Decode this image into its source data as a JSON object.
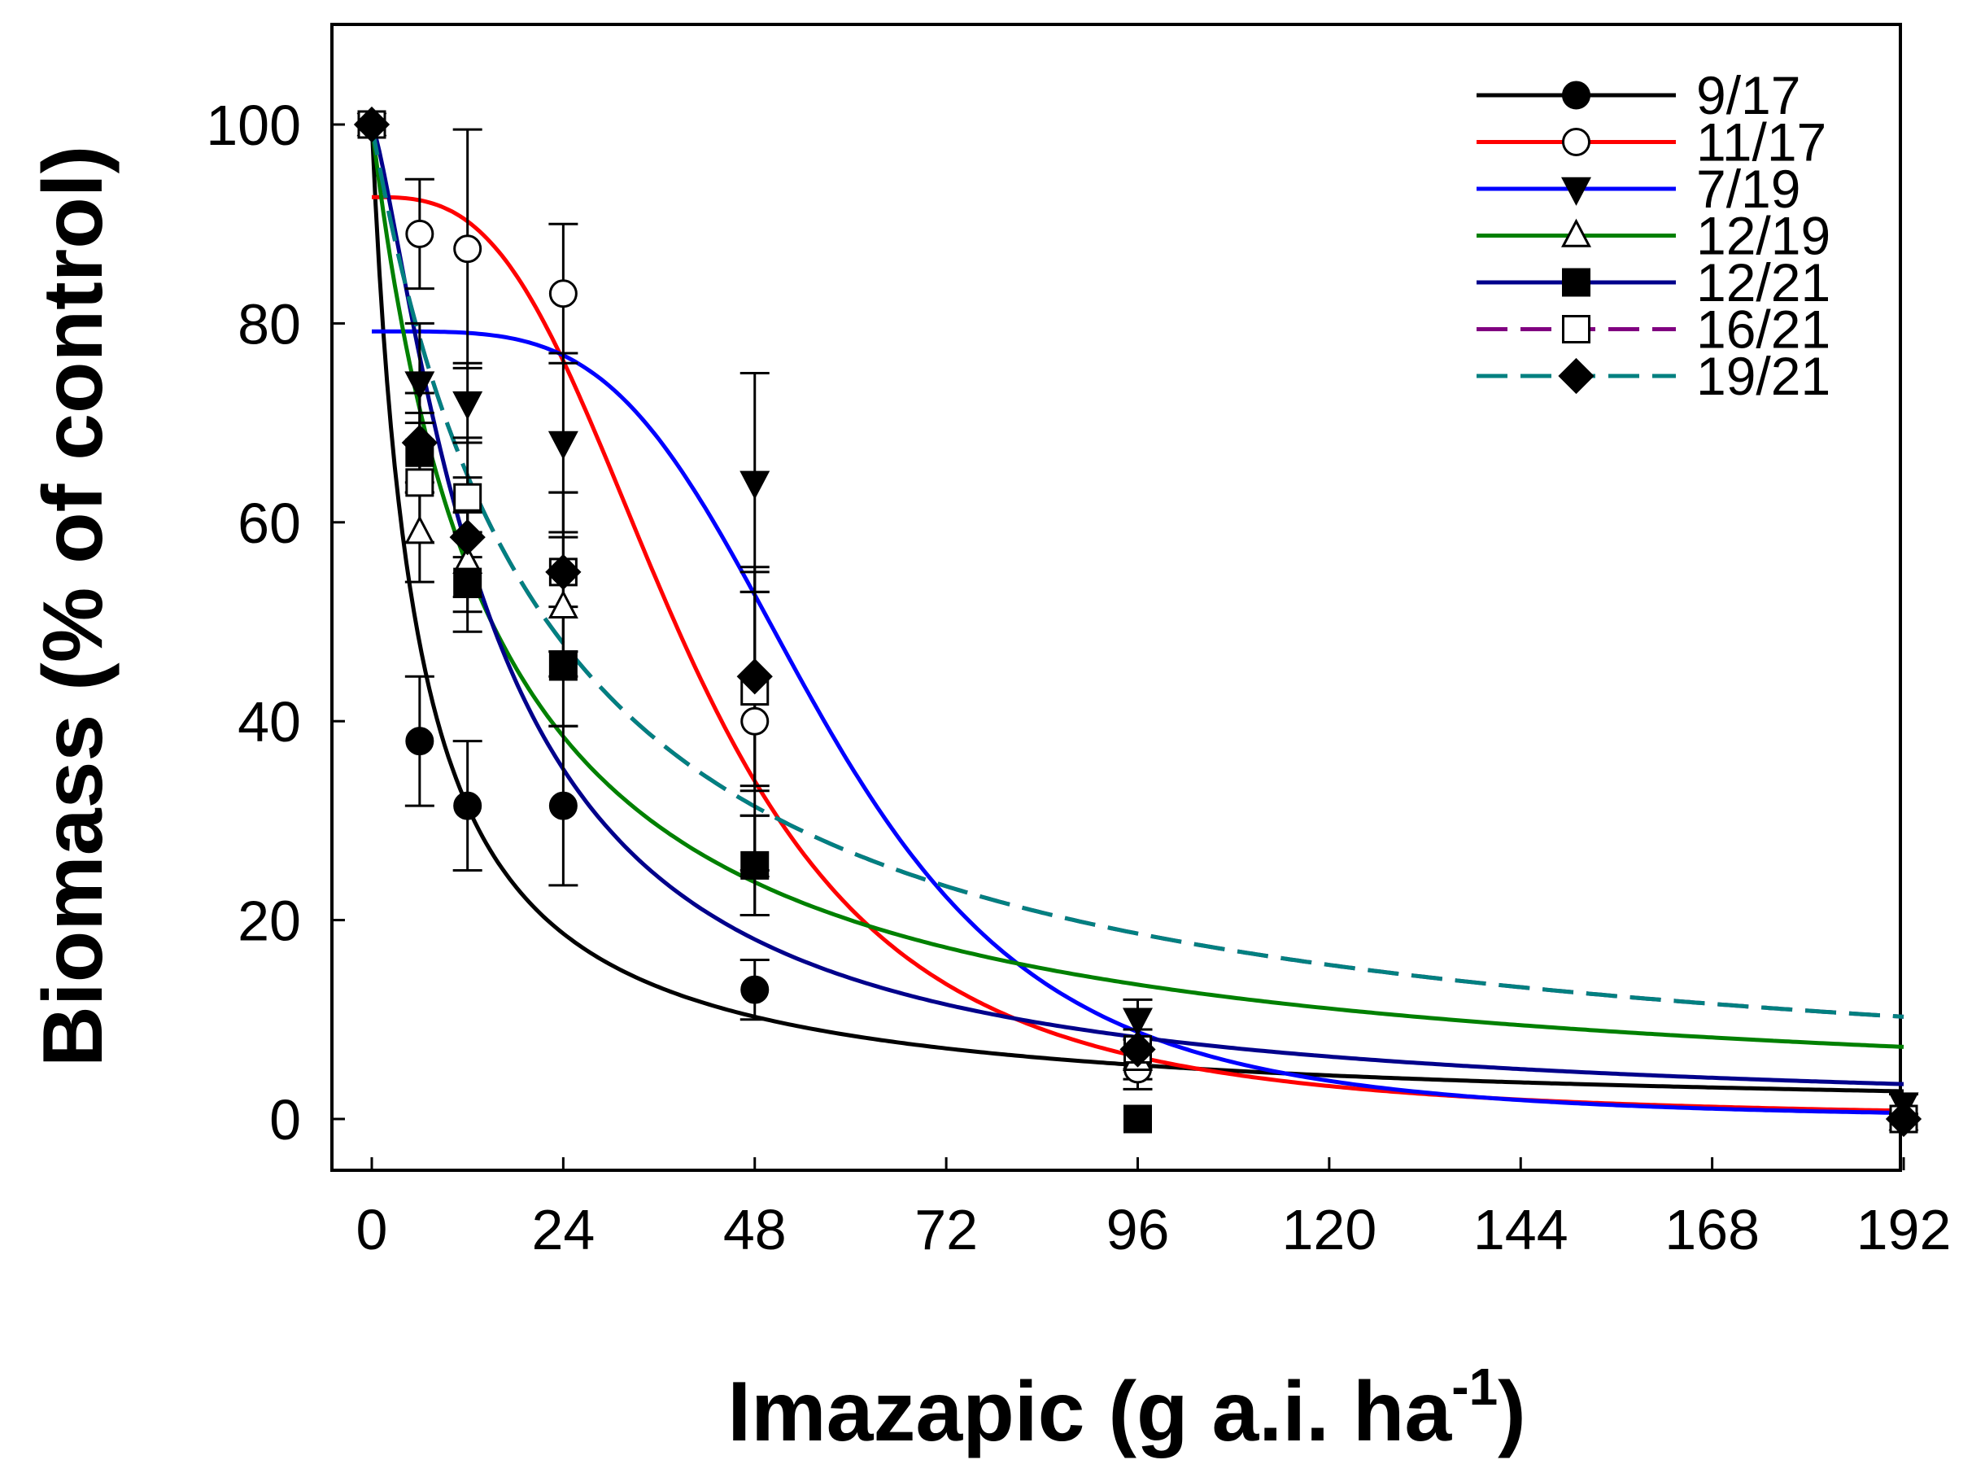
{
  "chart_data": {
    "type": "scatter",
    "title": "",
    "xlabel": "Imazapic (g a.i. ha",
    "xlabel_superscript": "-1",
    "xlabel_suffix": ")",
    "ylabel": "Biomass (% of control)",
    "xlim": [
      -5,
      198
    ],
    "ylim": [
      -5,
      110
    ],
    "xticks": [
      0,
      24,
      48,
      72,
      96,
      120,
      144,
      168,
      192
    ],
    "yticks": [
      0,
      20,
      40,
      60,
      80,
      100
    ],
    "x": [
      0,
      6,
      12,
      24,
      48,
      96,
      192
    ],
    "legend_position": "top-right",
    "series": [
      {
        "name": "9/17",
        "color": "#000000",
        "marker": "circle-filled",
        "dash": "solid",
        "values": [
          100,
          38,
          31.5,
          31.5,
          13,
          0,
          0
        ],
        "errors": [
          0,
          6.5,
          6.5,
          8,
          3,
          0,
          0
        ],
        "fit": {
          "model": "log-logistic",
          "top": 100,
          "ed50": 5.5,
          "slope": 1.0
        }
      },
      {
        "name": "11/17",
        "color": "#ff0000",
        "marker": "circle-open",
        "dash": "solid",
        "values": [
          100,
          89,
          87.5,
          83,
          40,
          5,
          0
        ],
        "errors": [
          0,
          5.5,
          12,
          7,
          15,
          2,
          0
        ],
        "fit": {
          "model": "log-logistic",
          "top": 92.7,
          "ed50": 40,
          "slope": 3.0
        }
      },
      {
        "name": "7/19",
        "color": "#0000ff",
        "marker": "triangle-down-filled",
        "dash": "solid",
        "values": [
          100,
          74,
          72,
          68,
          64,
          10,
          1.5
        ],
        "errors": [
          0,
          6,
          4,
          9,
          11,
          2,
          1
        ],
        "fit": {
          "model": "log-logistic",
          "top": 79.2,
          "ed50": 57,
          "slope": 4.0
        }
      },
      {
        "name": "12/19",
        "color": "#008000",
        "marker": "triangle-up-open",
        "dash": "solid",
        "values": [
          100,
          59,
          56,
          51.5,
          25.5,
          6,
          0
        ],
        "errors": [
          0,
          5,
          5,
          7,
          5,
          2,
          0
        ],
        "fit": {
          "model": "log-logistic",
          "top": 100,
          "ed50": 15,
          "slope": 1.0
        }
      },
      {
        "name": "12/21",
        "color": "#00008b",
        "marker": "square-filled",
        "dash": "solid",
        "values": [
          100,
          67,
          54,
          45.5,
          25.5,
          0,
          0
        ],
        "errors": [
          0,
          4,
          5,
          6,
          5,
          0,
          0
        ],
        "fit": {
          "model": "log-logistic",
          "top": 100,
          "ed50": 15,
          "slope": 1.3
        }
      },
      {
        "name": "16/21",
        "color": "#800080",
        "marker": "square-open",
        "dash": "dashed",
        "values": [
          100,
          64,
          62.5,
          55,
          43,
          7,
          0
        ],
        "errors": [
          0,
          6,
          6,
          8,
          10,
          2,
          0
        ],
        "fit": {
          "model": "log-logistic",
          "top": 100,
          "ed50": 22,
          "slope": 1.0
        }
      },
      {
        "name": "19/21",
        "color": "#008080",
        "marker": "diamond-filled",
        "dash": "dashed",
        "values": [
          100,
          68,
          58.5,
          55,
          44.5,
          7,
          0
        ],
        "errors": [
          0,
          5,
          6,
          8,
          11,
          2,
          0
        ],
        "fit": {
          "model": "log-logistic",
          "top": 100,
          "ed50": 22,
          "slope": 1.0
        }
      }
    ]
  }
}
